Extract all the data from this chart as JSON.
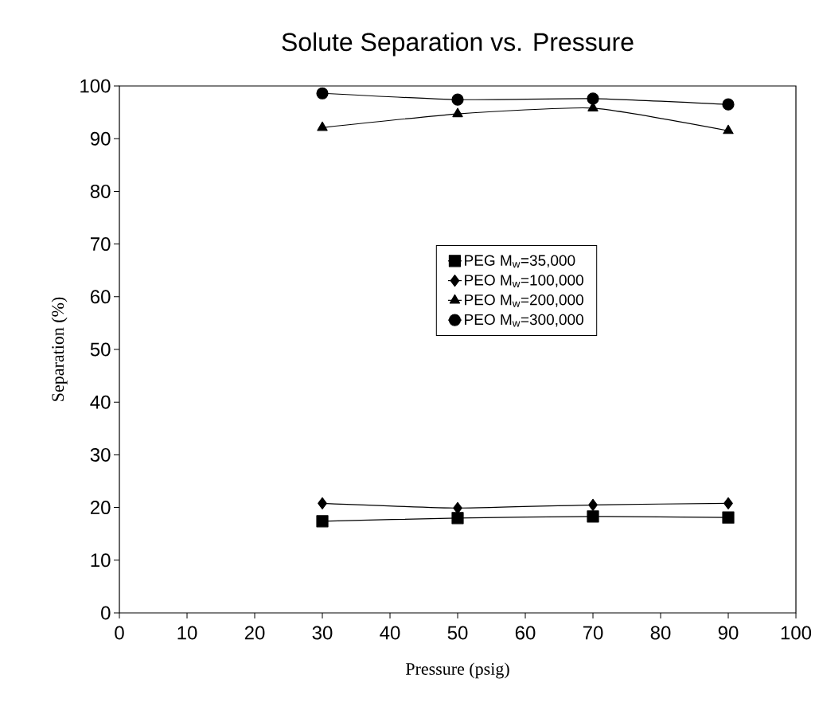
{
  "chart_data": {
    "type": "line",
    "title": "Solute Separation vs. Pressure",
    "xlabel": "Pressure  (psig)",
    "ylabel": "Separation  (%)",
    "xlim": [
      0,
      100
    ],
    "xticks": [
      0,
      10,
      20,
      30,
      40,
      50,
      60,
      70,
      80,
      90,
      100
    ],
    "ylim": [
      0,
      100
    ],
    "yticks": [
      0,
      10,
      20,
      30,
      40,
      50,
      60,
      70,
      80,
      90,
      100
    ],
    "x": [
      30,
      50,
      70,
      90
    ],
    "grid": false,
    "legend": "right",
    "line_style": "solid",
    "series": [
      {
        "name": "PEG  M$_{w}$=35,000",
        "color": "#000000",
        "marker": "square",
        "values": [
          17.4,
          18.0,
          18.3,
          18.1
        ]
      },
      {
        "name": "PEO  M$_{w}$=100,000",
        "color": "#000000",
        "marker": "diamond",
        "values": [
          20.8,
          19.9,
          20.5,
          20.8
        ]
      },
      {
        "name": "PEO  M$_{w}$=200,000",
        "color": "#000000",
        "marker": "triangle",
        "values": [
          92.1,
          94.7,
          95.8,
          91.5
        ]
      },
      {
        "name": "PEO  M$_{w}$=300,000",
        "color": "#000000",
        "marker": "circle",
        "values": [
          98.6,
          97.4,
          97.6,
          96.5
        ]
      }
    ]
  }
}
